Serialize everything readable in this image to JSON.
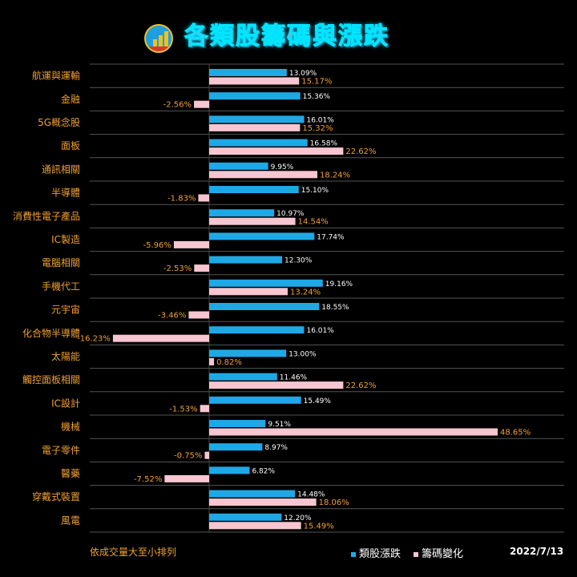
{
  "title": "各類股籌碼與漲跌",
  "footnote": "依成交量大至小排列",
  "date": "2022/7/13",
  "colors": {
    "background": "#000000",
    "series1": "#1ea9e6",
    "series2": "#f7c6d0",
    "category_text": "#f0a030",
    "label_series1": "#ffffff",
    "label_series2": "#f0a030",
    "grid": "#555555"
  },
  "chart_data": {
    "type": "bar",
    "orientation": "horizontal",
    "categories": [
      "航運與運輸",
      "金融",
      "5G概念股",
      "面板",
      "通訊相關",
      "半導體",
      "消費性電子產品",
      "IC製造",
      "電腦相關",
      "手機代工",
      "元宇宙",
      "化合物半導體",
      "太陽能",
      "觸控面板相關",
      "IC設計",
      "機械",
      "電子零件",
      "醫藥",
      "穿戴式裝置",
      "風電"
    ],
    "series": [
      {
        "name": "類股漲跌",
        "values": [
          13.09,
          15.36,
          16.01,
          16.58,
          9.95,
          15.1,
          10.97,
          17.74,
          12.3,
          19.16,
          18.55,
          16.01,
          13.0,
          11.46,
          15.49,
          9.51,
          8.97,
          6.82,
          14.48,
          12.2
        ],
        "labels": [
          "13.09%",
          "15.36%",
          "16.01%",
          "16.58%",
          "9.95%",
          "15.10%",
          "10.97%",
          "17.74%",
          "12.30%",
          "19.16%",
          "18.55%",
          "16.01%",
          "13.00%",
          "11.46%",
          "15.49%",
          "9.51%",
          "8.97%",
          "6.82%",
          "14.48%",
          "12.20%"
        ]
      },
      {
        "name": "籌碼變化",
        "values": [
          15.17,
          -2.56,
          15.32,
          22.62,
          18.24,
          -1.83,
          14.54,
          -5.96,
          -2.53,
          13.24,
          -3.46,
          -16.23,
          0.82,
          22.62,
          -1.53,
          48.65,
          -0.75,
          -7.52,
          18.06,
          15.49
        ],
        "labels": [
          "15.17%",
          "-2.56%",
          "15.32%",
          "22.62%",
          "18.24%",
          "-1.83%",
          "14.54%",
          "-5.96%",
          "-2.53%",
          "13.24%",
          "-3.46%",
          "-16.23%",
          "0.82%",
          "22.62%",
          "-1.53%",
          "48.65%",
          "-0.75%",
          "-7.52%",
          "18.06%",
          "15.49%"
        ]
      }
    ],
    "xlim": [
      -16.23,
      48.65
    ],
    "grid": "horizontal row separators",
    "legend_position": "bottom"
  }
}
